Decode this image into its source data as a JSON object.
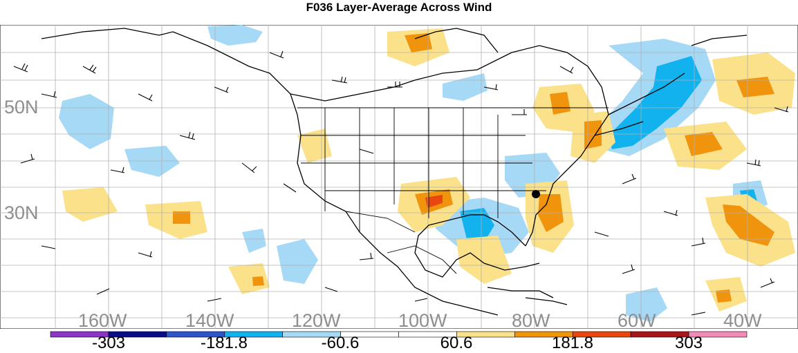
{
  "title": "F036 Layer-Average Across Wind",
  "lat_labels": [
    "50N",
    "30N"
  ],
  "lon_labels": [
    "160W",
    "140W",
    "120W",
    "100W",
    "80W",
    "60W",
    "40W"
  ],
  "colorbar": {
    "colors": [
      "#8b36c9",
      "#0b0a8a",
      "#2f55cc",
      "#12b2ef",
      "#a6d9f6",
      "#ffffff",
      "#ffffff",
      "#fbe28a",
      "#f0940e",
      "#e8470f",
      "#a7171a",
      "#f28bb9"
    ],
    "tick_labels": [
      "-303",
      "-181.8",
      "-60.6",
      "60.6",
      "181.8",
      "303"
    ]
  },
  "colors": {
    "land_outline": "#000000",
    "grid": "#b0b0b0",
    "negative_light": "#a6d9f6",
    "negative_strong": "#12b2ef",
    "positive_light": "#fbe28a",
    "positive_strong": "#f0940e",
    "label_gray": "#8e8e8e"
  }
}
